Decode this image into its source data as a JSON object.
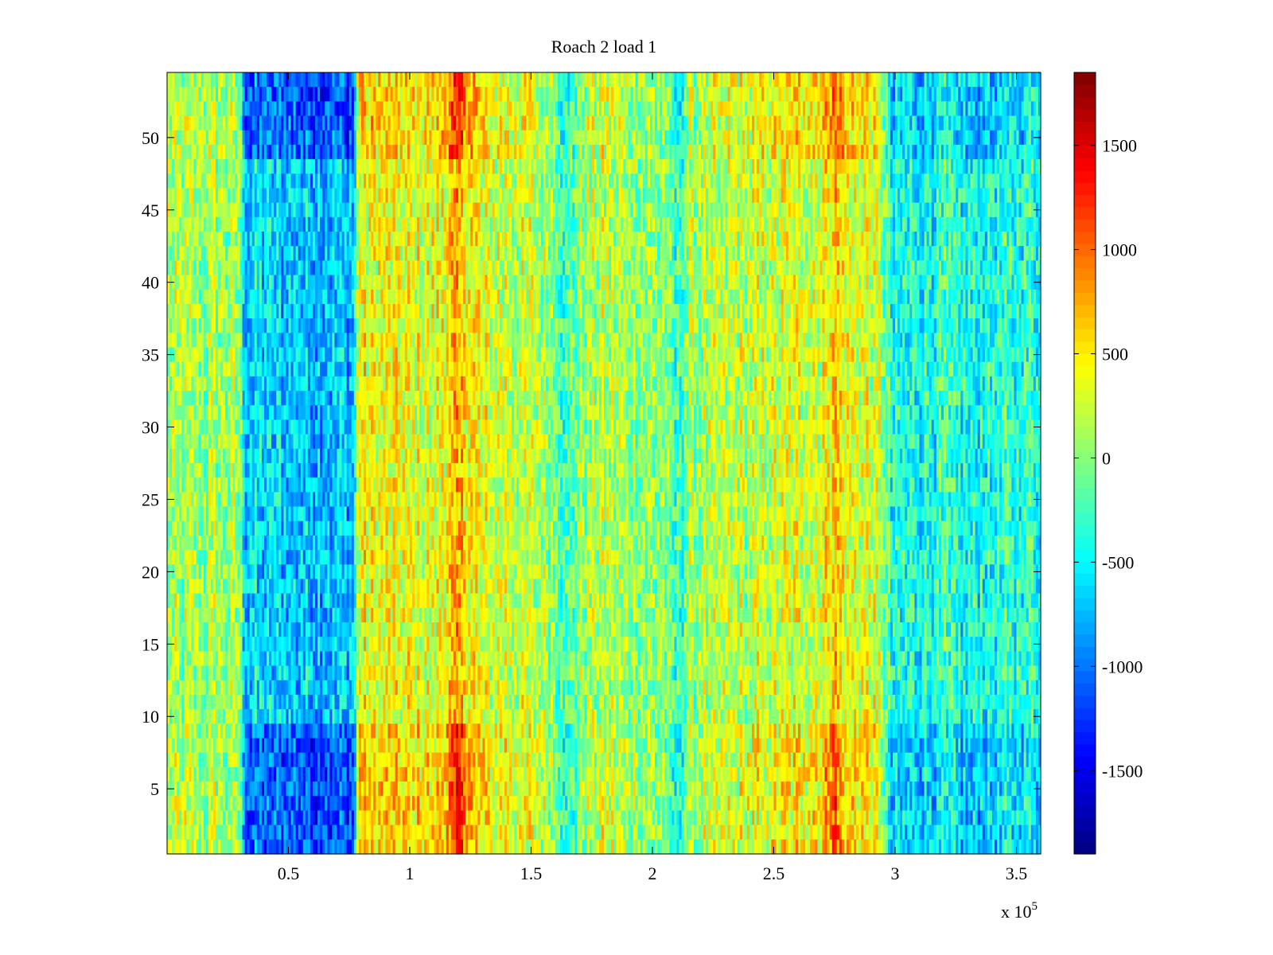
{
  "chart_data": {
    "type": "heatmap",
    "title": "Roach 2 load 1",
    "xlabel": "",
    "ylabel": "",
    "x_multiplier_label": "x 10",
    "x_multiplier_exponent": "5",
    "xlim": [
      0,
      360000
    ],
    "ylim": [
      0.5,
      54.5
    ],
    "x_ticks": [
      50000,
      100000,
      150000,
      200000,
      250000,
      300000,
      350000
    ],
    "x_tick_labels": [
      "0.5",
      "1",
      "1.5",
      "2",
      "2.5",
      "3",
      "3.5"
    ],
    "y_ticks": [
      5,
      10,
      15,
      20,
      25,
      30,
      35,
      40,
      45,
      50
    ],
    "y_tick_labels": [
      "5",
      "10",
      "15",
      "20",
      "25",
      "30",
      "35",
      "40",
      "45",
      "50"
    ],
    "rows": 54,
    "colorbar": {
      "colormap": "jet",
      "range": [
        -1900,
        1850
      ],
      "ticks": [
        1500,
        1000,
        500,
        0,
        -500,
        -1000,
        -1500
      ],
      "tick_labels": [
        "1500",
        "1000",
        "500",
        "0",
        "-500",
        "-1000",
        "-1500"
      ]
    },
    "column_profile": {
      "x": [
        0,
        30000,
        32000,
        77000,
        79000,
        110000,
        120000,
        130000,
        150000,
        160000,
        165000,
        170000,
        180000,
        205000,
        210000,
        215000,
        230000,
        270000,
        275000,
        280000,
        290000,
        295000,
        298000,
        320000,
        330000,
        340000,
        350000,
        360000
      ],
      "value": [
        100,
        50,
        -650,
        -700,
        400,
        300,
        700,
        300,
        200,
        50,
        -300,
        50,
        150,
        0,
        -350,
        50,
        150,
        350,
        700,
        350,
        300,
        100,
        -450,
        -350,
        -450,
        -400,
        -350,
        -300
      ]
    },
    "noise_amplitude": 420,
    "edge_rows_enhancement": 1.6,
    "grid": false,
    "colors": {
      "axes": "#000000",
      "background": "#ffffff"
    }
  }
}
